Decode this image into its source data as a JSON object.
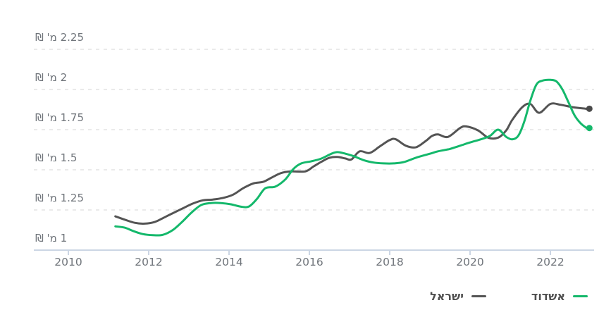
{
  "chart_data": {
    "type": "line",
    "title": "",
    "grid": "dashed horizontal",
    "legend_position": "bottom-right",
    "y_axis": {
      "unit": "מ' ₪",
      "range": [
        1,
        2.39
      ],
      "ticks": [
        {
          "value": 2.25,
          "label": "2.25 מ' ₪"
        },
        {
          "value": 2,
          "label": "2 מ' ₪"
        },
        {
          "value": 1.75,
          "label": "1.75 מ' ₪"
        },
        {
          "value": 1.5,
          "label": "1.5 מ' ₪"
        },
        {
          "value": 1.25,
          "label": "1.25 מ' ₪"
        },
        {
          "value": 1,
          "label": "1 מ' ₪"
        }
      ]
    },
    "x_axis": {
      "range": [
        2009.1,
        2023.1
      ],
      "ticks": [
        {
          "value": 2010,
          "label": "2010"
        },
        {
          "value": 2012,
          "label": "2012"
        },
        {
          "value": 2014,
          "label": "2014"
        },
        {
          "value": 2016,
          "label": "2016"
        },
        {
          "value": 2018,
          "label": "2018"
        },
        {
          "value": 2020,
          "label": "2020"
        },
        {
          "value": 2022,
          "label": "2022"
        }
      ]
    },
    "series": [
      {
        "name": "ישראל",
        "color": "#545454",
        "end_dot": true,
        "points": [
          [
            2011.17,
            1.21
          ],
          [
            2011.4,
            1.19
          ],
          [
            2011.65,
            1.17
          ],
          [
            2011.9,
            1.165
          ],
          [
            2012.15,
            1.175
          ],
          [
            2012.4,
            1.205
          ],
          [
            2012.6,
            1.23
          ],
          [
            2012.85,
            1.26
          ],
          [
            2013.1,
            1.29
          ],
          [
            2013.35,
            1.31
          ],
          [
            2013.6,
            1.315
          ],
          [
            2013.85,
            1.325
          ],
          [
            2014.1,
            1.345
          ],
          [
            2014.35,
            1.385
          ],
          [
            2014.6,
            1.415
          ],
          [
            2014.85,
            1.425
          ],
          [
            2015.05,
            1.45
          ],
          [
            2015.3,
            1.48
          ],
          [
            2015.55,
            1.49
          ],
          [
            2015.9,
            1.49
          ],
          [
            2016.1,
            1.52
          ],
          [
            2016.3,
            1.55
          ],
          [
            2016.5,
            1.575
          ],
          [
            2016.7,
            1.58
          ],
          [
            2016.9,
            1.57
          ],
          [
            2017.05,
            1.565
          ],
          [
            2017.25,
            1.615
          ],
          [
            2017.5,
            1.605
          ],
          [
            2017.75,
            1.645
          ],
          [
            2018.0,
            1.685
          ],
          [
            2018.15,
            1.69
          ],
          [
            2018.4,
            1.65
          ],
          [
            2018.65,
            1.64
          ],
          [
            2018.9,
            1.68
          ],
          [
            2019.05,
            1.71
          ],
          [
            2019.2,
            1.72
          ],
          [
            2019.45,
            1.705
          ],
          [
            2019.75,
            1.76
          ],
          [
            2019.9,
            1.77
          ],
          [
            2020.2,
            1.745
          ],
          [
            2020.45,
            1.7
          ],
          [
            2020.7,
            1.7
          ],
          [
            2020.9,
            1.745
          ],
          [
            2021.05,
            1.81
          ],
          [
            2021.3,
            1.89
          ],
          [
            2021.5,
            1.91
          ],
          [
            2021.72,
            1.855
          ],
          [
            2022.0,
            1.91
          ],
          [
            2022.25,
            1.905
          ],
          [
            2022.55,
            1.89
          ],
          [
            2022.9,
            1.88
          ]
        ]
      },
      {
        "name": "אשדוד",
        "color": "#14b86b",
        "end_dot": true,
        "points": [
          [
            2011.17,
            1.148
          ],
          [
            2011.4,
            1.14
          ],
          [
            2011.6,
            1.12
          ],
          [
            2011.85,
            1.1
          ],
          [
            2012.1,
            1.093
          ],
          [
            2012.35,
            1.095
          ],
          [
            2012.6,
            1.125
          ],
          [
            2012.85,
            1.18
          ],
          [
            2013.05,
            1.23
          ],
          [
            2013.3,
            1.28
          ],
          [
            2013.55,
            1.293
          ],
          [
            2013.8,
            1.293
          ],
          [
            2014.05,
            1.285
          ],
          [
            2014.3,
            1.27
          ],
          [
            2014.5,
            1.272
          ],
          [
            2014.7,
            1.32
          ],
          [
            2014.9,
            1.385
          ],
          [
            2015.15,
            1.395
          ],
          [
            2015.4,
            1.44
          ],
          [
            2015.6,
            1.505
          ],
          [
            2015.8,
            1.54
          ],
          [
            2016.05,
            1.553
          ],
          [
            2016.3,
            1.57
          ],
          [
            2016.55,
            1.6
          ],
          [
            2016.7,
            1.61
          ],
          [
            2016.9,
            1.6
          ],
          [
            2017.1,
            1.585
          ],
          [
            2017.35,
            1.56
          ],
          [
            2017.6,
            1.545
          ],
          [
            2017.85,
            1.54
          ],
          [
            2018.1,
            1.54
          ],
          [
            2018.35,
            1.548
          ],
          [
            2018.65,
            1.575
          ],
          [
            2019.0,
            1.6
          ],
          [
            2019.2,
            1.615
          ],
          [
            2019.5,
            1.63
          ],
          [
            2019.75,
            1.65
          ],
          [
            2020.0,
            1.67
          ],
          [
            2020.3,
            1.692
          ],
          [
            2020.5,
            1.712
          ],
          [
            2020.7,
            1.75
          ],
          [
            2020.9,
            1.705
          ],
          [
            2021.05,
            1.69
          ],
          [
            2021.2,
            1.712
          ],
          [
            2021.35,
            1.8
          ],
          [
            2021.5,
            1.93
          ],
          [
            2021.65,
            2.03
          ],
          [
            2021.8,
            2.055
          ],
          [
            2022.0,
            2.06
          ],
          [
            2022.15,
            2.05
          ],
          [
            2022.3,
            2.0
          ],
          [
            2022.45,
            1.92
          ],
          [
            2022.6,
            1.84
          ],
          [
            2022.75,
            1.79
          ],
          [
            2022.9,
            1.76
          ]
        ]
      }
    ]
  },
  "legend": {
    "items": [
      {
        "label": "אשדוד",
        "color": "#14b86b"
      },
      {
        "label": "ישראל",
        "color": "#545454"
      }
    ]
  },
  "colors": {
    "ashdod_green": "#14b86b",
    "israel_gray": "#545454",
    "gridline": "#e4e4e4",
    "axis_line": "#ccd6e4",
    "tick_text": "#70757b",
    "legend_text": "#4f4f4f",
    "background": "#ffffff"
  }
}
